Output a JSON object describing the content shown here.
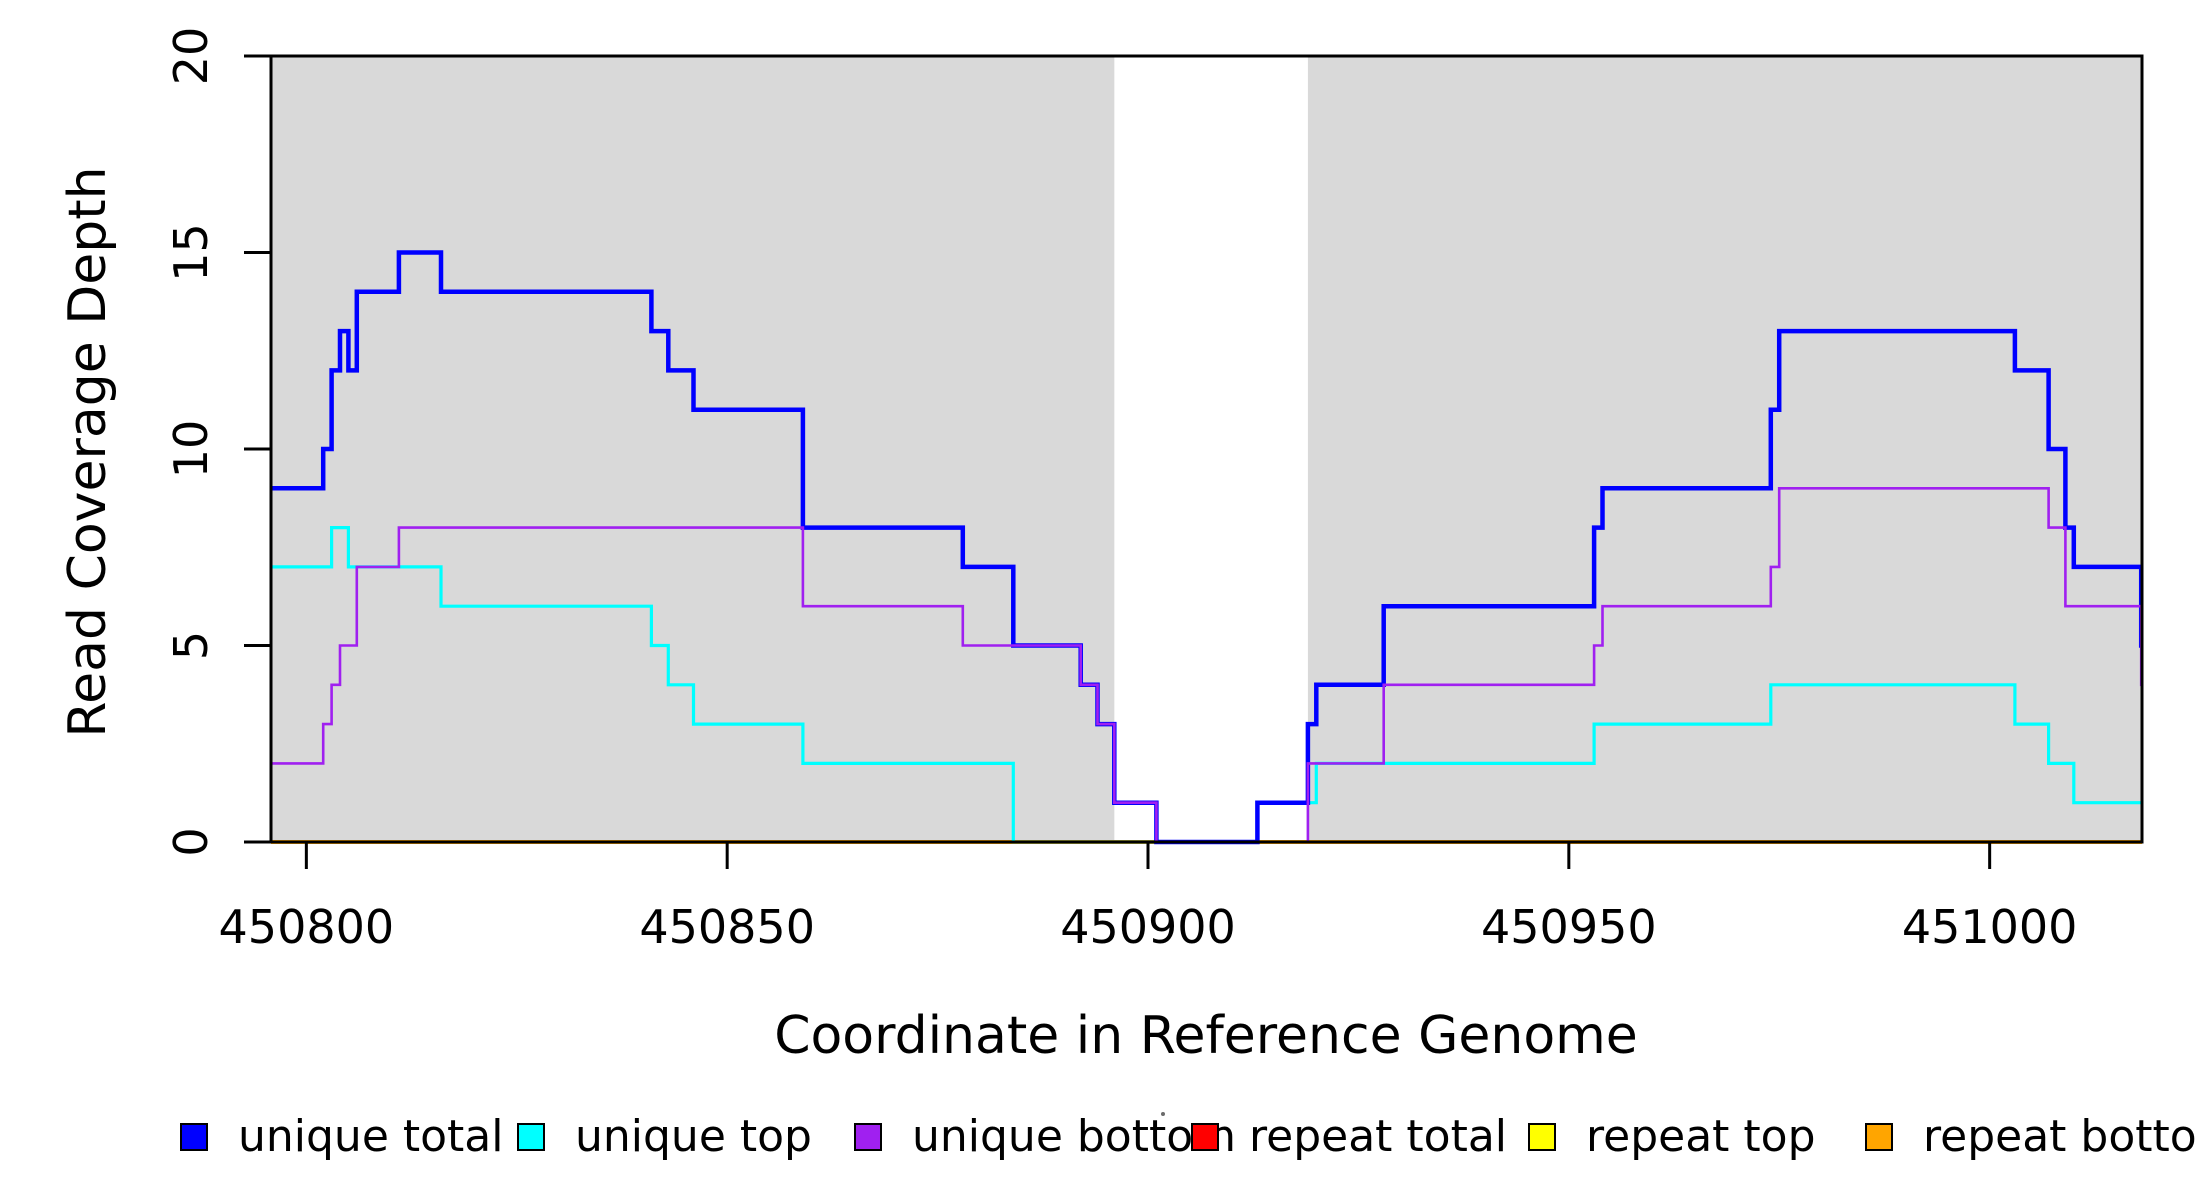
{
  "figure": {
    "xlabel": "Coordinate in Reference Genome",
    "ylabel": "Read Coverage Depth",
    "background_color": "#ffffff",
    "shaded_band_color": "#d9d9d9",
    "axis_color": "#000000"
  },
  "chart_data": {
    "type": "line",
    "step": "post",
    "title": "",
    "xlabel": "Coordinate in Reference Genome",
    "ylabel": "Read Coverage Depth",
    "xlim": [
      450795.8,
      451018.1
    ],
    "ylim": [
      0,
      20
    ],
    "x_ticks": [
      450800,
      450850,
      450900,
      450950,
      451000
    ],
    "y_ticks": [
      0,
      5,
      10,
      15,
      20
    ],
    "grid": false,
    "legend_position": "bottom",
    "shaded_x_ranges": [
      [
        450795.8,
        450896
      ],
      [
        450919,
        451018.1
      ]
    ],
    "draw_order": [
      "repeat total",
      "repeat top",
      "repeat bottom",
      "unique top",
      "unique total",
      "unique bottom"
    ],
    "series": [
      {
        "name": "unique total",
        "color": "#0000ff",
        "line_width": 4.5,
        "points": [
          [
            450795.8,
            9
          ],
          [
            450802,
            10
          ],
          [
            450803,
            12
          ],
          [
            450804,
            13
          ],
          [
            450805,
            12
          ],
          [
            450806,
            14
          ],
          [
            450811,
            15
          ],
          [
            450816,
            14
          ],
          [
            450841,
            13
          ],
          [
            450843,
            12
          ],
          [
            450846,
            11
          ],
          [
            450859,
            8
          ],
          [
            450878,
            7
          ],
          [
            450884,
            5
          ],
          [
            450892,
            4
          ],
          [
            450894,
            3
          ],
          [
            450896,
            1
          ],
          [
            450901,
            0
          ],
          [
            450913,
            1
          ],
          [
            450919,
            3
          ],
          [
            450920,
            4
          ],
          [
            450928,
            6
          ],
          [
            450953,
            8
          ],
          [
            450954,
            9
          ],
          [
            450974,
            11
          ],
          [
            450975,
            13
          ],
          [
            451003,
            12
          ],
          [
            451007,
            10
          ],
          [
            451009,
            8
          ],
          [
            451010,
            7
          ],
          [
            451018,
            5
          ],
          [
            451018.1,
            5
          ]
        ]
      },
      {
        "name": "unique top",
        "color": "#00ffff",
        "line_width": 3.2,
        "points": [
          [
            450795.8,
            7
          ],
          [
            450803,
            8
          ],
          [
            450805,
            7
          ],
          [
            450816,
            6
          ],
          [
            450841,
            5
          ],
          [
            450843,
            4
          ],
          [
            450846,
            3
          ],
          [
            450859,
            2
          ],
          [
            450884,
            0
          ],
          [
            450913,
            1
          ],
          [
            450920,
            2
          ],
          [
            450953,
            3
          ],
          [
            450974,
            4
          ],
          [
            451003,
            3
          ],
          [
            451007,
            2
          ],
          [
            451010,
            1
          ],
          [
            451018.1,
            1
          ]
        ]
      },
      {
        "name": "unique bottom",
        "color": "#a020f0",
        "line_width": 2.6,
        "points": [
          [
            450795.8,
            2
          ],
          [
            450802,
            3
          ],
          [
            450803,
            4
          ],
          [
            450804,
            5
          ],
          [
            450806,
            7
          ],
          [
            450811,
            8
          ],
          [
            450859,
            6
          ],
          [
            450878,
            5
          ],
          [
            450892,
            4
          ],
          [
            450894,
            3
          ],
          [
            450896,
            1
          ],
          [
            450901,
            0
          ],
          [
            450919,
            2
          ],
          [
            450928,
            4
          ],
          [
            450953,
            5
          ],
          [
            450954,
            6
          ],
          [
            450974,
            7
          ],
          [
            450975,
            9
          ],
          [
            451007,
            8
          ],
          [
            451009,
            6
          ],
          [
            451018,
            4
          ],
          [
            451018.1,
            4
          ]
        ]
      },
      {
        "name": "repeat total",
        "color": "#ff0000",
        "line_width": 3,
        "points": [
          [
            450795.8,
            0
          ],
          [
            451018.1,
            0
          ]
        ]
      },
      {
        "name": "repeat top",
        "color": "#ffff00",
        "line_width": 3,
        "points": [
          [
            450795.8,
            0
          ],
          [
            451018.1,
            0
          ]
        ]
      },
      {
        "name": "repeat bottom",
        "color": "#ffa500",
        "line_width": 4,
        "points": [
          [
            450795.8,
            0
          ],
          [
            451018.1,
            0
          ]
        ]
      }
    ]
  }
}
